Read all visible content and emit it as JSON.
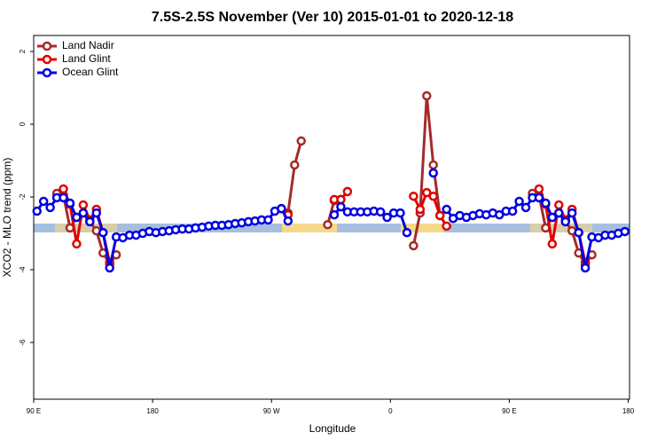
{
  "chart_data": {
    "type": "line",
    "title": "7.5S-2.5S November (Ver 10)   2015-01-01 to 2020-12-18",
    "x_label": "Longitude",
    "y_label": "XCO2 - MLO trend (ppm)",
    "xlim": [
      90,
      541
    ],
    "ylim": [
      -7.56,
      2.44
    ],
    "xticks": [
      {
        "value": 90,
        "label": "90 E"
      },
      180,
      {
        "value": 270,
        "label": "90 W"
      },
      {
        "value": 360,
        "label": "0"
      },
      {
        "value": 450,
        "label": "90 E"
      },
      {
        "value": 540,
        "label": "180"
      }
    ],
    "yticks": [
      -6,
      -4,
      -2,
      0,
      2
    ],
    "grid": false,
    "legend": "topleft",
    "x": [
      92.5,
      97.5,
      102.5,
      107.5,
      112.5,
      117.5,
      122.5,
      127.5,
      132.5,
      137.5,
      142.5,
      147.5,
      152.5,
      157.5,
      162.5,
      167.5,
      172.5,
      177.5,
      182.5,
      187.5,
      192.5,
      197.5,
      202.5,
      207.5,
      212.5,
      217.5,
      222.5,
      227.5,
      232.5,
      237.5,
      242.5,
      247.5,
      252.5,
      257.5,
      262.5,
      267.5,
      272.5,
      277.5,
      282.5,
      287.5,
      292.5,
      297.5,
      302.5,
      307.5,
      312.5,
      317.5,
      322.5,
      327.5,
      332.5,
      337.5,
      342.5,
      347.5,
      352.5,
      357.5,
      362.5,
      367.5,
      372.5,
      377.5,
      382.5,
      387.5,
      392.5,
      397.5,
      402.5,
      407.5,
      412.5,
      417.5,
      422.5,
      427.5,
      432.5,
      437.5,
      442.5,
      447.5,
      452.5,
      457.5,
      462.5,
      467.5,
      472.5,
      477.5,
      482.5,
      487.5,
      492.5,
      497.5,
      502.5,
      507.5,
      512.5,
      517.5,
      522.5,
      527.5,
      532.5,
      537.5
    ],
    "series": [
      {
        "name": "Land Nadir",
        "color": "#a52a2a",
        "values": [
          null,
          null,
          null,
          -1.9,
          -1.95,
          -2.85,
          -2.56,
          -2.44,
          -2.68,
          -2.93,
          -3.54,
          -3.85,
          -3.59,
          null,
          null,
          null,
          null,
          null,
          null,
          null,
          null,
          null,
          null,
          null,
          null,
          null,
          null,
          null,
          null,
          null,
          null,
          null,
          null,
          null,
          null,
          null,
          null,
          null,
          -2.44,
          -1.12,
          -0.46,
          null,
          null,
          null,
          -2.76,
          -2.1,
          -2.07,
          null,
          null,
          null,
          null,
          null,
          null,
          null,
          null,
          null,
          null,
          -3.34,
          -2.44,
          0.78,
          -1.12,
          -2.51,
          null,
          null,
          null,
          null,
          null,
          null,
          null,
          null,
          null,
          null,
          null,
          null,
          null,
          -1.9,
          -1.95,
          -2.85,
          -2.56,
          -2.44,
          -2.68,
          -2.93,
          -3.54,
          -3.85,
          -3.59,
          null,
          null,
          null,
          null,
          null
        ]
      },
      {
        "name": "Land Glint",
        "color": "#e00000",
        "values": [
          null,
          null,
          null,
          null,
          -1.78,
          -2.2,
          -3.29,
          -2.22,
          -2.63,
          -2.34,
          -2.98,
          -3.8,
          null,
          null,
          null,
          null,
          null,
          null,
          null,
          null,
          null,
          null,
          null,
          null,
          null,
          null,
          null,
          null,
          null,
          null,
          null,
          null,
          null,
          null,
          null,
          null,
          null,
          -2.32,
          -2.49,
          null,
          null,
          null,
          null,
          null,
          null,
          -2.07,
          -2.07,
          -1.85,
          null,
          null,
          null,
          null,
          null,
          null,
          null,
          null,
          null,
          -1.98,
          -2.34,
          -1.88,
          -1.98,
          -2.51,
          -2.8,
          null,
          null,
          null,
          null,
          null,
          null,
          null,
          null,
          null,
          null,
          null,
          null,
          null,
          -1.78,
          -2.2,
          -3.29,
          -2.22,
          -2.63,
          -2.34,
          -2.98,
          -3.8,
          null,
          null,
          null,
          null,
          null,
          null
        ]
      },
      {
        "name": "Ocean Glint",
        "color": "#0000e0",
        "values": [
          -2.39,
          -2.12,
          -2.29,
          -2.02,
          -2.02,
          -2.17,
          -2.56,
          -2.44,
          -2.68,
          -2.44,
          -2.98,
          -3.95,
          -3.1,
          -3.12,
          -3.05,
          -3.05,
          -3.0,
          -2.95,
          -2.98,
          -2.95,
          -2.93,
          -2.9,
          -2.88,
          -2.88,
          -2.85,
          -2.83,
          -2.8,
          -2.78,
          -2.78,
          -2.76,
          -2.73,
          -2.71,
          -2.68,
          -2.66,
          -2.63,
          -2.63,
          -2.39,
          -2.32,
          -2.66,
          null,
          null,
          null,
          null,
          null,
          null,
          -2.49,
          -2.27,
          -2.41,
          -2.41,
          -2.41,
          -2.41,
          -2.39,
          -2.41,
          -2.56,
          -2.44,
          -2.44,
          -2.98,
          null,
          null,
          null,
          -1.34,
          null,
          -2.34,
          -2.59,
          -2.51,
          -2.56,
          -2.51,
          -2.46,
          -2.49,
          -2.44,
          -2.49,
          -2.39,
          -2.39,
          -2.12,
          -2.29,
          -2.02,
          -2.02,
          -2.17,
          -2.56,
          -2.44,
          -2.68,
          -2.44,
          -2.98,
          -3.95,
          -3.1,
          -3.12,
          -3.05,
          -3.05,
          -3.0,
          -2.95
        ]
      }
    ]
  }
}
